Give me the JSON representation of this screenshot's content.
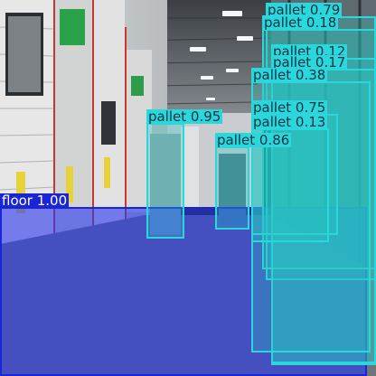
{
  "colors": {
    "floor_box": "#1a25d6",
    "floor_fill": "#2c3aeb",
    "pallet_box": "#2ad8dc",
    "pallet_label_text": "#123046",
    "floor_label_text": "#ffffff"
  },
  "detections": [
    {
      "id": "floor",
      "label": "floor 1.00",
      "class": "floor"
    },
    {
      "id": "p95",
      "label": "pallet 0.95",
      "class": "pallet"
    },
    {
      "id": "p86",
      "label": "pallet 0.86",
      "class": "pallet"
    },
    {
      "id": "p79",
      "label": "pallet 0.79",
      "class": "pallet"
    },
    {
      "id": "p18",
      "label": "pallet 0.18",
      "class": "pallet"
    },
    {
      "id": "p12",
      "label": "pallet 0.12",
      "class": "pallet"
    },
    {
      "id": "p17",
      "label": "pallet 0.17",
      "class": "pallet"
    },
    {
      "id": "p38",
      "label": "pallet 0.38",
      "class": "pallet"
    },
    {
      "id": "p75",
      "label": "pallet 0.75",
      "class": "pallet"
    },
    {
      "id": "p13",
      "label": "pallet 0.13",
      "class": "pallet"
    }
  ]
}
